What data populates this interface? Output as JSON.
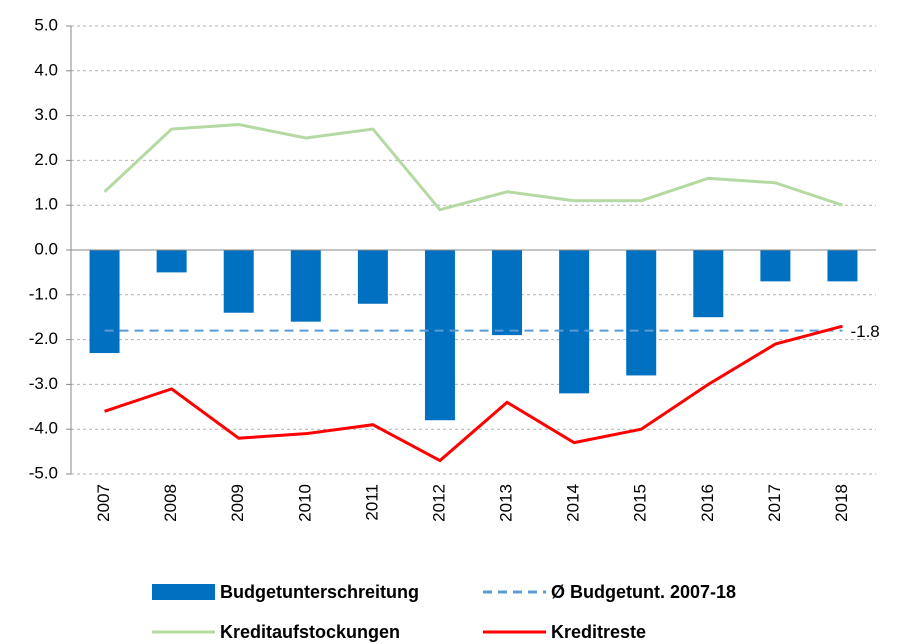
{
  "chart_data": {
    "type": "bar",
    "categories": [
      "2007",
      "2008",
      "2009",
      "2010",
      "2011",
      "2012",
      "2013",
      "2014",
      "2015",
      "2016",
      "2017",
      "2018"
    ],
    "series": [
      {
        "name": "Budgetunterschreitung",
        "kind": "bar",
        "color": "#0070c0",
        "values": [
          -2.3,
          -0.5,
          -1.4,
          -1.6,
          -1.2,
          -3.8,
          -1.9,
          -3.2,
          -2.8,
          -1.5,
          -0.7,
          -0.7
        ]
      },
      {
        "name": "Kreditaufstockungen",
        "kind": "line",
        "color": "#b5d9a2",
        "values": [
          1.3,
          2.7,
          2.8,
          2.5,
          2.7,
          0.9,
          1.3,
          1.1,
          1.1,
          1.6,
          1.5,
          1.0
        ]
      },
      {
        "name": "Kreditreste",
        "kind": "line",
        "color": "#ff0000",
        "values": [
          -3.6,
          -3.1,
          -4.2,
          -4.1,
          -3.9,
          -4.7,
          -3.4,
          -4.3,
          -4.0,
          -3.0,
          -2.1,
          -1.7
        ]
      }
    ],
    "reference_line": {
      "name": "Ø Budgetunt. 2007-18",
      "value": -1.8,
      "color": "#5b9bd5"
    },
    "ylim": [
      -5,
      5
    ],
    "yticks": [
      {
        "value": -5,
        "label": "-5.0"
      },
      {
        "value": -4,
        "label": "-4.0"
      },
      {
        "value": -3,
        "label": "-3.0"
      },
      {
        "value": -2,
        "label": "-2.0"
      },
      {
        "value": -1,
        "label": "-1.0"
      },
      {
        "value": 0,
        "label": "0.0"
      },
      {
        "value": 1,
        "label": "1.0"
      },
      {
        "value": 2,
        "label": "2.0"
      },
      {
        "value": 3,
        "label": "3.0"
      },
      {
        "value": 4,
        "label": "4.0"
      },
      {
        "value": 5,
        "label": "5.0"
      }
    ],
    "grid": true
  }
}
